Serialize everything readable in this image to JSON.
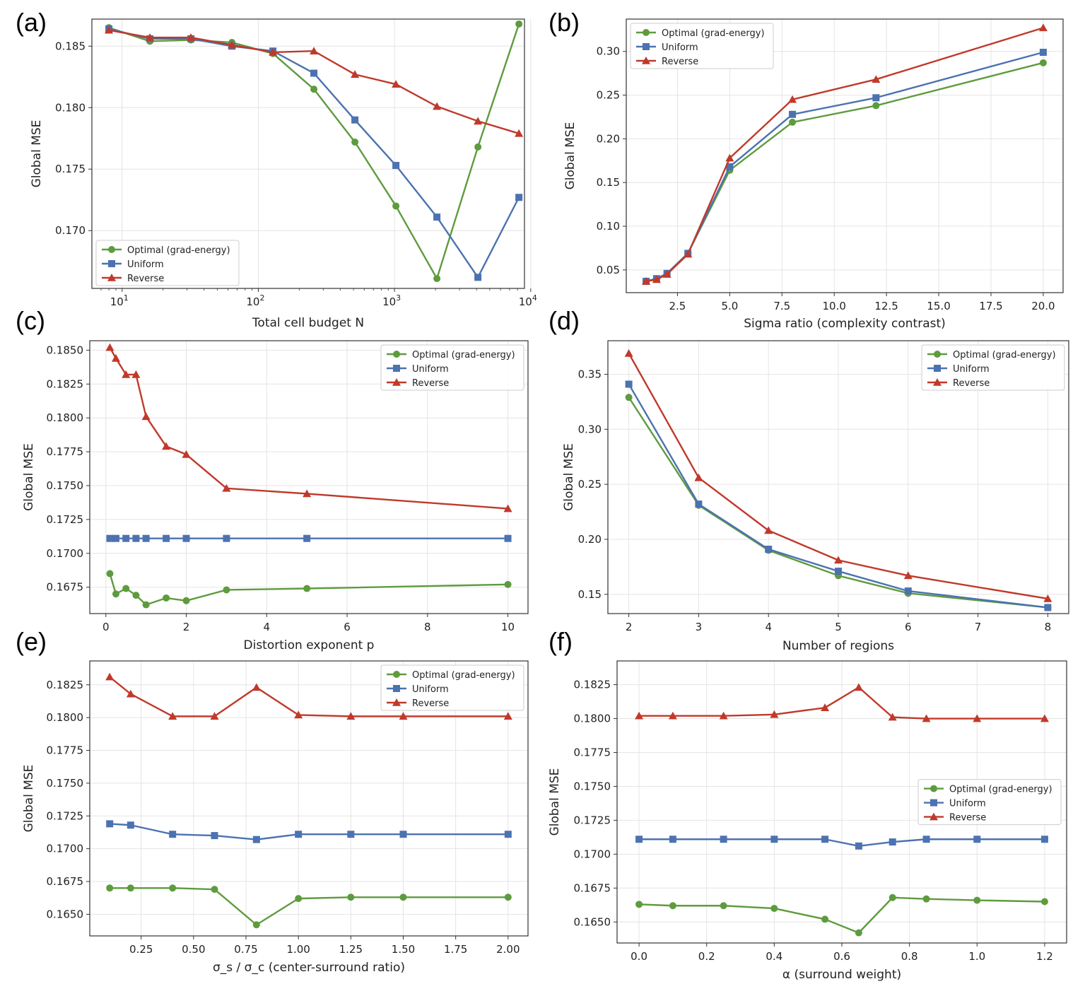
{
  "figure": {
    "colors": {
      "optimal": "#5e9b3e",
      "uniform": "#4c72b0",
      "reverse": "#c0392b"
    }
  },
  "chart_data": [
    {
      "type": "line",
      "panel": "(a)",
      "xlabel": "Total cell budget N",
      "ylabel": "Global MSE",
      "xscale": "log",
      "xlim": [
        6,
        9000
      ],
      "ylim": [
        0.1653,
        0.1872
      ],
      "xticks": [
        10,
        100,
        1000,
        10000
      ],
      "xtick_labels": [
        [
          "10",
          "1"
        ],
        [
          "10",
          "2"
        ],
        [
          "10",
          "3"
        ],
        [
          "10",
          "4"
        ]
      ],
      "yticks": [
        0.17,
        0.175,
        0.18,
        0.185
      ],
      "ytick_labels": [
        "0.170",
        "0.175",
        "0.180",
        "0.185"
      ],
      "legend_position": "lower-left",
      "x": [
        8,
        16,
        32,
        64,
        128,
        256,
        512,
        1024,
        2048,
        4096,
        8192
      ],
      "series": [
        {
          "name": "Optimal (grad-energy)",
          "key": "optimal",
          "marker": "circle",
          "values": [
            0.1865,
            0.1854,
            0.1855,
            0.1853,
            0.1844,
            0.1815,
            0.1772,
            0.172,
            0.1661,
            0.1768,
            0.1868
          ]
        },
        {
          "name": "Uniform",
          "key": "uniform",
          "marker": "square",
          "values": [
            0.1864,
            0.1856,
            0.1856,
            0.185,
            0.1846,
            0.1828,
            0.179,
            0.1753,
            0.1711,
            0.1662,
            0.1727
          ]
        },
        {
          "name": "Reverse",
          "key": "reverse",
          "marker": "triangle",
          "values": [
            0.1863,
            0.1857,
            0.1857,
            0.1851,
            0.1845,
            0.1846,
            0.1827,
            0.1819,
            0.1801,
            0.1789,
            0.1779
          ]
        }
      ]
    },
    {
      "type": "line",
      "panel": "(b)",
      "xlabel": "Sigma ratio  (complexity contrast)",
      "ylabel": "Global MSE",
      "xscale": "linear",
      "xlim": [
        0.05,
        20.95
      ],
      "ylim": [
        0.024,
        0.337
      ],
      "xticks": [
        2.5,
        5.0,
        7.5,
        10.0,
        12.5,
        15.0,
        17.5,
        20.0
      ],
      "xtick_labels": [
        "2.5",
        "5.0",
        "7.5",
        "10.0",
        "12.5",
        "15.0",
        "17.5",
        "20.0"
      ],
      "yticks": [
        0.05,
        0.1,
        0.15,
        0.2,
        0.25,
        0.3
      ],
      "ytick_labels": [
        "0.05",
        "0.10",
        "0.15",
        "0.20",
        "0.25",
        "0.30"
      ],
      "legend_position": "top-left",
      "x": [
        1.0,
        1.5,
        2.0,
        3.0,
        5.0,
        8.0,
        12.0,
        20.0
      ],
      "series": [
        {
          "name": "Optimal (grad-energy)",
          "key": "optimal",
          "marker": "circle",
          "values": [
            0.037,
            0.04,
            0.046,
            0.069,
            0.164,
            0.219,
            0.238,
            0.287
          ]
        },
        {
          "name": "Uniform",
          "key": "uniform",
          "marker": "square",
          "values": [
            0.037,
            0.04,
            0.046,
            0.069,
            0.168,
            0.228,
            0.247,
            0.299
          ]
        },
        {
          "name": "Reverse",
          "key": "reverse",
          "marker": "triangle",
          "values": [
            0.037,
            0.039,
            0.045,
            0.068,
            0.178,
            0.245,
            0.268,
            0.327
          ]
        }
      ]
    },
    {
      "type": "line",
      "panel": "(c)",
      "xlabel": "Distortion exponent  p",
      "ylabel": "Global MSE",
      "xscale": "linear",
      "xlim": [
        -0.4,
        10.5
      ],
      "ylim": [
        0.16555,
        0.1857
      ],
      "xticks": [
        0,
        2,
        4,
        6,
        8,
        10
      ],
      "xtick_labels": [
        "0",
        "2",
        "4",
        "6",
        "8",
        "10"
      ],
      "yticks": [
        0.1675,
        0.17,
        0.1725,
        0.175,
        0.1775,
        0.18,
        0.1825,
        0.185
      ],
      "ytick_labels": [
        "0.1675",
        "0.1700",
        "0.1725",
        "0.1750",
        "0.1775",
        "0.1800",
        "0.1825",
        "0.1850"
      ],
      "legend_position": "top-right",
      "x": [
        0.1,
        0.25,
        0.5,
        0.75,
        1.0,
        1.5,
        2.0,
        3.0,
        5.0,
        10.0
      ],
      "series": [
        {
          "name": "Optimal (grad-energy)",
          "key": "optimal",
          "marker": "circle",
          "values": [
            0.1685,
            0.167,
            0.1674,
            0.1669,
            0.1662,
            0.1667,
            0.1665,
            0.1673,
            0.1674,
            0.1677
          ]
        },
        {
          "name": "Uniform",
          "key": "uniform",
          "marker": "square",
          "values": [
            0.1711,
            0.1711,
            0.1711,
            0.1711,
            0.1711,
            0.1711,
            0.1711,
            0.1711,
            0.1711,
            0.1711
          ]
        },
        {
          "name": "Reverse",
          "key": "reverse",
          "marker": "triangle",
          "values": [
            0.1852,
            0.1844,
            0.1832,
            0.1832,
            0.1801,
            0.1779,
            0.1773,
            0.1748,
            0.1744,
            0.1733
          ]
        }
      ]
    },
    {
      "type": "line",
      "panel": "(d)",
      "xlabel": "Number of regions",
      "ylabel": "Global MSE",
      "xscale": "linear",
      "xlim": [
        1.7,
        8.3
      ],
      "ylim": [
        0.1325,
        0.3805
      ],
      "xticks": [
        2,
        3,
        4,
        5,
        6,
        7,
        8
      ],
      "xtick_labels": [
        "2",
        "3",
        "4",
        "5",
        "6",
        "7",
        "8"
      ],
      "yticks": [
        0.15,
        0.2,
        0.25,
        0.3,
        0.35
      ],
      "ytick_labels": [
        "0.15",
        "0.20",
        "0.25",
        "0.30",
        "0.35"
      ],
      "legend_position": "top-right",
      "x": [
        2,
        3,
        4,
        5,
        6,
        8
      ],
      "series": [
        {
          "name": "Optimal (grad-energy)",
          "key": "optimal",
          "marker": "circle",
          "values": [
            0.329,
            0.231,
            0.19,
            0.167,
            0.151,
            0.138
          ]
        },
        {
          "name": "Uniform",
          "key": "uniform",
          "marker": "square",
          "values": [
            0.341,
            0.232,
            0.191,
            0.171,
            0.153,
            0.138
          ]
        },
        {
          "name": "Reverse",
          "key": "reverse",
          "marker": "triangle",
          "values": [
            0.369,
            0.256,
            0.208,
            0.181,
            0.167,
            0.146
          ]
        }
      ]
    },
    {
      "type": "line",
      "panel": "(e)",
      "xlabel": "σ_s / σ_c  (center-surround ratio)",
      "ylabel": "Global MSE",
      "xscale": "linear",
      "xlim": [
        0.005,
        2.095
      ],
      "ylim": [
        0.16335,
        0.18432
      ],
      "xticks": [
        0.25,
        0.5,
        0.75,
        1.0,
        1.25,
        1.5,
        1.75,
        2.0
      ],
      "xtick_labels": [
        "0.25",
        "0.50",
        "0.75",
        "1.00",
        "1.25",
        "1.50",
        "1.75",
        "2.00"
      ],
      "yticks": [
        0.165,
        0.1675,
        0.17,
        0.1725,
        0.175,
        0.1775,
        0.18,
        0.1825
      ],
      "ytick_labels": [
        "0.1650",
        "0.1675",
        "0.1700",
        "0.1725",
        "0.1750",
        "0.1775",
        "0.1800",
        "0.1825"
      ],
      "legend_position": "top-right",
      "x": [
        0.1,
        0.2,
        0.4,
        0.6,
        0.8,
        1.0,
        1.25,
        1.5,
        2.0
      ],
      "series": [
        {
          "name": "Optimal (grad-energy)",
          "key": "optimal",
          "marker": "circle",
          "values": [
            0.167,
            0.167,
            0.167,
            0.1669,
            0.1642,
            0.1662,
            0.1663,
            0.1663,
            0.1663
          ]
        },
        {
          "name": "Uniform",
          "key": "uniform",
          "marker": "square",
          "values": [
            0.1719,
            0.1718,
            0.1711,
            0.171,
            0.1707,
            0.1711,
            0.1711,
            0.1711,
            0.1711
          ]
        },
        {
          "name": "Reverse",
          "key": "reverse",
          "marker": "triangle",
          "values": [
            0.1831,
            0.1818,
            0.1801,
            0.1801,
            0.1823,
            0.1802,
            0.1801,
            0.1801,
            0.1801
          ]
        }
      ]
    },
    {
      "type": "line",
      "panel": "(f)",
      "xlabel": "α  (surround weight)",
      "ylabel": "Global MSE",
      "xscale": "linear",
      "xlim": [
        -0.065,
        1.265
      ],
      "ylim": [
        0.16345,
        0.18425
      ],
      "xticks": [
        0.0,
        0.2,
        0.4,
        0.6,
        0.8,
        1.0,
        1.2
      ],
      "xtick_labels": [
        "0.0",
        "0.2",
        "0.4",
        "0.6",
        "0.8",
        "1.0",
        "1.2"
      ],
      "yticks": [
        0.165,
        0.1675,
        0.17,
        0.1725,
        0.175,
        0.1775,
        0.18,
        0.1825
      ],
      "ytick_labels": [
        "0.1650",
        "0.1675",
        "0.1700",
        "0.1725",
        "0.1750",
        "0.1775",
        "0.1800",
        "0.1825"
      ],
      "legend_position": "center-right",
      "x": [
        0.0,
        0.1,
        0.25,
        0.4,
        0.55,
        0.65,
        0.75,
        0.85,
        1.0,
        1.2
      ],
      "series": [
        {
          "name": "Optimal (grad-energy)",
          "key": "optimal",
          "marker": "circle",
          "values": [
            0.1663,
            0.1662,
            0.1662,
            0.166,
            0.1652,
            0.1642,
            0.1668,
            0.1667,
            0.1666,
            0.1665
          ]
        },
        {
          "name": "Uniform",
          "key": "uniform",
          "marker": "square",
          "values": [
            0.1711,
            0.1711,
            0.1711,
            0.1711,
            0.1711,
            0.1706,
            0.1709,
            0.1711,
            0.1711,
            0.1711
          ]
        },
        {
          "name": "Reverse",
          "key": "reverse",
          "marker": "triangle",
          "values": [
            0.1802,
            0.1802,
            0.1802,
            0.1803,
            0.1808,
            0.1823,
            0.1801,
            0.18,
            0.18,
            0.18
          ]
        }
      ]
    }
  ]
}
